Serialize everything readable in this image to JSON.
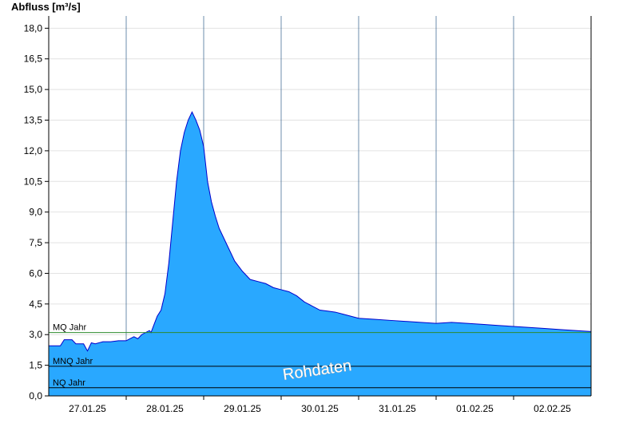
{
  "chart_data": {
    "type": "area",
    "ylabel": "Abfluss [m³/s]",
    "ylim": [
      0,
      18.6
    ],
    "yticks": [
      "0,0",
      "1,5",
      "3,0",
      "4,5",
      "6,0",
      "7,5",
      "9,0",
      "10,5",
      "12,0",
      "13,5",
      "15,0",
      "16,5",
      "18,0"
    ],
    "ytick_values": [
      0,
      1.5,
      3,
      4.5,
      6,
      7.5,
      9,
      10.5,
      12,
      13.5,
      15,
      16.5,
      18
    ],
    "xlim": [
      0,
      7
    ],
    "xtick_positions": [
      0.5,
      1.5,
      2.5,
      3.5,
      4.5,
      5.5,
      6.5
    ],
    "xticks": [
      "27.01.25",
      "28.01.25",
      "29.01.25",
      "30.01.25",
      "31.01.25",
      "01.02.25",
      "02.02.25"
    ],
    "day_boundaries": [
      1,
      2,
      3,
      4,
      5,
      6
    ],
    "grid": true,
    "series": [
      {
        "x": [
          0,
          0.15,
          0.2,
          0.3,
          0.35,
          0.45,
          0.5,
          0.55,
          0.6,
          0.7,
          0.8,
          0.9,
          1.0,
          1.05,
          1.1,
          1.15,
          1.2,
          1.25,
          1.3,
          1.32,
          1.35,
          1.4,
          1.45,
          1.5,
          1.55,
          1.6,
          1.65,
          1.7,
          1.75,
          1.8,
          1.85,
          1.9,
          1.95,
          2.0,
          2.05,
          2.1,
          2.15,
          2.2,
          2.3,
          2.4,
          2.5,
          2.6,
          2.7,
          2.8,
          2.9,
          3.0,
          3.1,
          3.2,
          3.3,
          3.4,
          3.5,
          3.6,
          3.7,
          3.8,
          4.0,
          4.2,
          4.4,
          4.6,
          4.8,
          5.0,
          5.2,
          5.4,
          5.6,
          5.8,
          6.0,
          6.2,
          6.4,
          6.6,
          6.8,
          7.0
        ],
        "y": [
          2.45,
          2.45,
          2.75,
          2.75,
          2.55,
          2.55,
          2.2,
          2.6,
          2.55,
          2.65,
          2.65,
          2.7,
          2.7,
          2.8,
          2.9,
          2.8,
          3.0,
          3.1,
          3.2,
          3.1,
          3.4,
          3.9,
          4.2,
          5.0,
          6.5,
          8.5,
          10.5,
          12.0,
          12.9,
          13.5,
          13.9,
          13.5,
          13.0,
          12.2,
          10.5,
          9.5,
          8.8,
          8.2,
          7.4,
          6.6,
          6.1,
          5.7,
          5.6,
          5.5,
          5.3,
          5.2,
          5.1,
          4.9,
          4.6,
          4.4,
          4.2,
          4.15,
          4.1,
          4.0,
          3.8,
          3.75,
          3.7,
          3.65,
          3.6,
          3.55,
          3.6,
          3.55,
          3.5,
          3.45,
          3.4,
          3.35,
          3.3,
          3.25,
          3.2,
          3.15
        ]
      }
    ],
    "reference_lines": [
      {
        "label": "MQ Jahr",
        "value": 3.1,
        "color": "#2e8b2e"
      },
      {
        "label": "MNQ Jahr",
        "value": 1.45,
        "color": "#000000"
      },
      {
        "label": "NQ Jahr",
        "value": 0.4,
        "color": "#000000"
      }
    ],
    "fill_color": "#29a8ff",
    "line_color": "#0000cc",
    "annotation": "Rohdaten"
  }
}
